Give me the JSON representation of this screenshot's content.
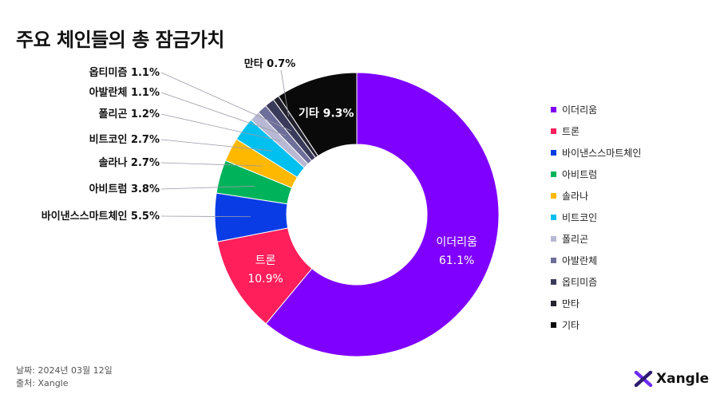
{
  "page": {
    "title": "주요 체인들의 총 잠금가치",
    "footer": {
      "date": "날짜: 2024년 03월 12일",
      "source": "출처: Xangle"
    },
    "brand": "Xangle",
    "brand_icon": "xangle-logo-icon"
  },
  "chart_data": {
    "type": "pie",
    "donut": true,
    "legend_position": "right",
    "series": [
      {
        "name": "이더리움",
        "value": 61.1,
        "label": "61.1%",
        "color": "#7F00FF"
      },
      {
        "name": "트론",
        "value": 10.9,
        "label": "10.9%",
        "color": "#FF1F5B"
      },
      {
        "name": "바이낸스스마트체인",
        "value": 5.5,
        "label": "5.5%",
        "color": "#0A3CE6"
      },
      {
        "name": "아비트럼",
        "value": 3.8,
        "label": "3.8%",
        "color": "#00B35A"
      },
      {
        "name": "솔라나",
        "value": 2.7,
        "label": "2.7%",
        "color": "#FFB800"
      },
      {
        "name": "비트코인",
        "value": 2.7,
        "label": "2.7%",
        "color": "#00C0F0"
      },
      {
        "name": "폴리곤",
        "value": 1.2,
        "label": "1.2%",
        "color": "#B8B8D4"
      },
      {
        "name": "아발란체",
        "value": 1.1,
        "label": "1.1%",
        "color": "#6E6E9A"
      },
      {
        "name": "옵티미즘",
        "value": 1.1,
        "label": "1.1%",
        "color": "#3A3A5A"
      },
      {
        "name": "만타",
        "value": 0.7,
        "label": "0.7%",
        "color": "#23232F"
      },
      {
        "name": "기타",
        "value": 9.3,
        "label": "9.3%",
        "color": "#0A0A0A"
      }
    ]
  }
}
